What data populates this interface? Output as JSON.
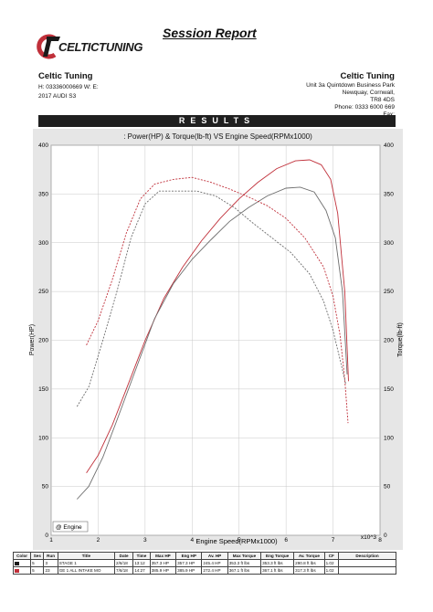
{
  "header": {
    "logo_text": "CELTICTUNING",
    "title": "Session Report"
  },
  "left_info": {
    "company": "Celtic Tuning",
    "line1": "H:  03336000669    W:        E:",
    "line2": "2017 AUDI S3"
  },
  "right_info": {
    "company": "Celtic Tuning",
    "lines": [
      "Unit 3a Quintdown Business Park",
      "Newquay, Cornwall,",
      "TR8 4DS",
      "Phone: 0333 6000 669",
      "Fax:"
    ]
  },
  "results_label": "RESULTS",
  "legend_label": "@ Engine",
  "colors": {
    "red": "#c0303a",
    "grey": "#6e6e6e",
    "background": "#e6e6e6"
  },
  "chart_data": {
    "type": "line",
    "title": ": Power(HP) & Torque(lb-ft) VS Engine Speed(RPMx1000)",
    "xlabel": "Engine Speed(RPMx1000)",
    "ylabel": "Power(HP)",
    "ylabel_right": "Torque(lb-ft)",
    "x_multiplier": "x10^3",
    "xlim": [
      1,
      8
    ],
    "ylim": [
      0,
      400
    ],
    "ylim_right": [
      0,
      400
    ],
    "x_ticks": [
      1,
      2,
      3,
      4,
      5,
      6,
      7,
      8
    ],
    "y_ticks": [
      0,
      50,
      100,
      150,
      200,
      250,
      300,
      350,
      400
    ],
    "grid": true,
    "series": [
      {
        "name": "GE 1 ALL INTAKE MOD",
        "measure": "power",
        "color": "#c0303a",
        "style": "solid",
        "x": [
          1.75,
          2.0,
          2.3,
          2.6,
          3.0,
          3.4,
          3.8,
          4.2,
          4.6,
          5.0,
          5.4,
          5.8,
          6.2,
          6.5,
          6.75,
          6.95,
          7.1,
          7.25,
          7.33
        ],
        "y": [
          64,
          82,
          113,
          150,
          200,
          243,
          275,
          302,
          325,
          345,
          362,
          376,
          384,
          385,
          380,
          365,
          330,
          250,
          158
        ]
      },
      {
        "name": "STAGE 1",
        "measure": "power",
        "color": "#6e6e6e",
        "style": "solid",
        "x": [
          1.55,
          1.8,
          2.1,
          2.4,
          2.8,
          3.2,
          3.6,
          4.0,
          4.4,
          4.8,
          5.2,
          5.6,
          6.0,
          6.3,
          6.6,
          6.85,
          7.05,
          7.2,
          7.3
        ],
        "y": [
          37,
          50,
          80,
          118,
          170,
          222,
          258,
          283,
          303,
          322,
          336,
          348,
          356,
          357,
          352,
          333,
          305,
          250,
          165
        ]
      },
      {
        "name": "GE 1 ALL INTAKE MOD",
        "measure": "torque",
        "color": "#c0303a",
        "style": "dashed",
        "x": [
          1.75,
          2.0,
          2.3,
          2.6,
          2.9,
          3.2,
          3.6,
          4.0,
          4.4,
          4.8,
          5.2,
          5.6,
          6.0,
          6.4,
          6.8,
          7.0,
          7.15,
          7.25,
          7.32
        ],
        "y": [
          195,
          220,
          262,
          310,
          345,
          360,
          365,
          367,
          362,
          355,
          347,
          338,
          325,
          305,
          275,
          245,
          205,
          160,
          115
        ]
      },
      {
        "name": "STAGE 1",
        "measure": "torque",
        "color": "#6e6e6e",
        "style": "dashed",
        "x": [
          1.55,
          1.8,
          2.1,
          2.4,
          2.7,
          3.0,
          3.3,
          3.7,
          4.1,
          4.5,
          4.9,
          5.3,
          5.7,
          6.1,
          6.5,
          6.8,
          7.0,
          7.15,
          7.27
        ],
        "y": [
          132,
          152,
          200,
          250,
          305,
          340,
          353,
          353,
          353,
          348,
          336,
          320,
          305,
          290,
          268,
          240,
          210,
          180,
          155
        ]
      }
    ]
  },
  "table": {
    "headers": [
      "Color",
      "Ses",
      "Run",
      "Title",
      "Date",
      "Time",
      "Max HP",
      "Eng HP",
      "Av. HP",
      "Max Torque",
      "Eng Torque",
      "Av. Torque",
      "CF",
      "Description"
    ],
    "rows": [
      {
        "color": "#1a1a1a",
        "cells": [
          "5",
          "3",
          "STAGE 1",
          "2/6/18",
          "13:12",
          "357.3 HP",
          "357.3 HP",
          "245.4 HP",
          "353.3 ft lbs",
          "353.3 ft lbs",
          "290.8 ft lbs",
          "1.02",
          ""
        ]
      },
      {
        "color": "#c0303a",
        "cells": [
          "5",
          "23",
          "GE 1 ALL INTAKE MO",
          "7/6/18",
          "14:27",
          "385.9 HP",
          "385.9 HP",
          "272.4 HP",
          "367.1 ft lbs",
          "367.1 ft lbs",
          "317.3 ft lbs",
          "1.02",
          ""
        ]
      }
    ]
  }
}
